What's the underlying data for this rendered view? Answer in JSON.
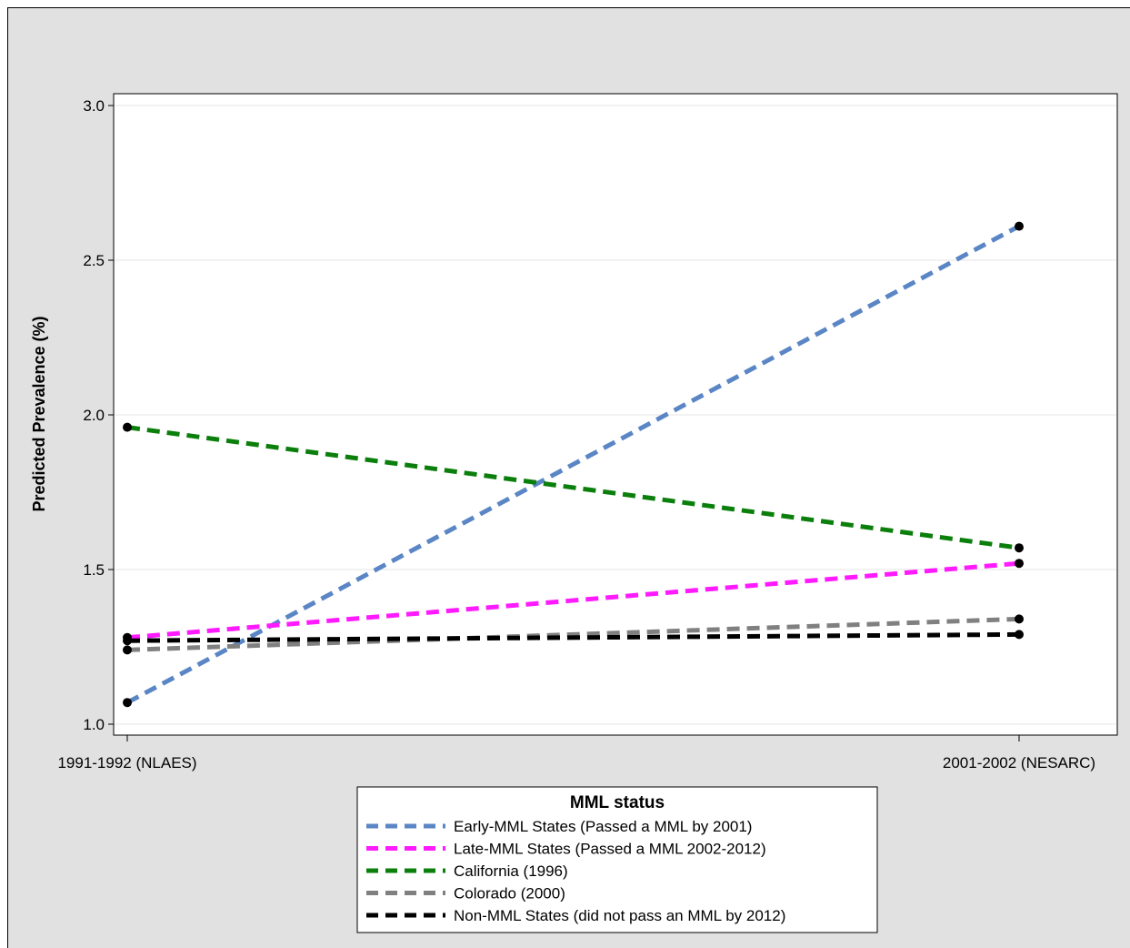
{
  "chart_data": {
    "type": "line",
    "categories": [
      "1991-1992 (NLAES)",
      "2001-2002 (NESARC)"
    ],
    "ylabel": "Predicted Prevalence (%)",
    "xlabel": "",
    "ylim": [
      1.0,
      3.0
    ],
    "yticks": [
      "1.0",
      "1.5",
      "2.0",
      "2.5",
      "3.0"
    ],
    "grid": "horizontal",
    "legend": {
      "title": "MML status",
      "placement": "bottom"
    },
    "series": [
      {
        "name": "Early-MML States (Passed a MML by 2001)",
        "color": "#5b86c5",
        "values": [
          1.07,
          2.61
        ]
      },
      {
        "name": "Late-MML States (Passed a MML 2002-2012)",
        "color": "#ff1aff",
        "values": [
          1.28,
          1.52
        ]
      },
      {
        "name": "California (1996)",
        "color": "#0b7f0b",
        "values": [
          1.96,
          1.57
        ]
      },
      {
        "name": "Colorado (2000)",
        "color": "#808080",
        "values": [
          1.24,
          1.34
        ]
      },
      {
        "name": "Non-MML States (did not pass an MML by 2012)",
        "color": "#000000",
        "values": [
          1.27,
          1.29
        ]
      }
    ]
  }
}
